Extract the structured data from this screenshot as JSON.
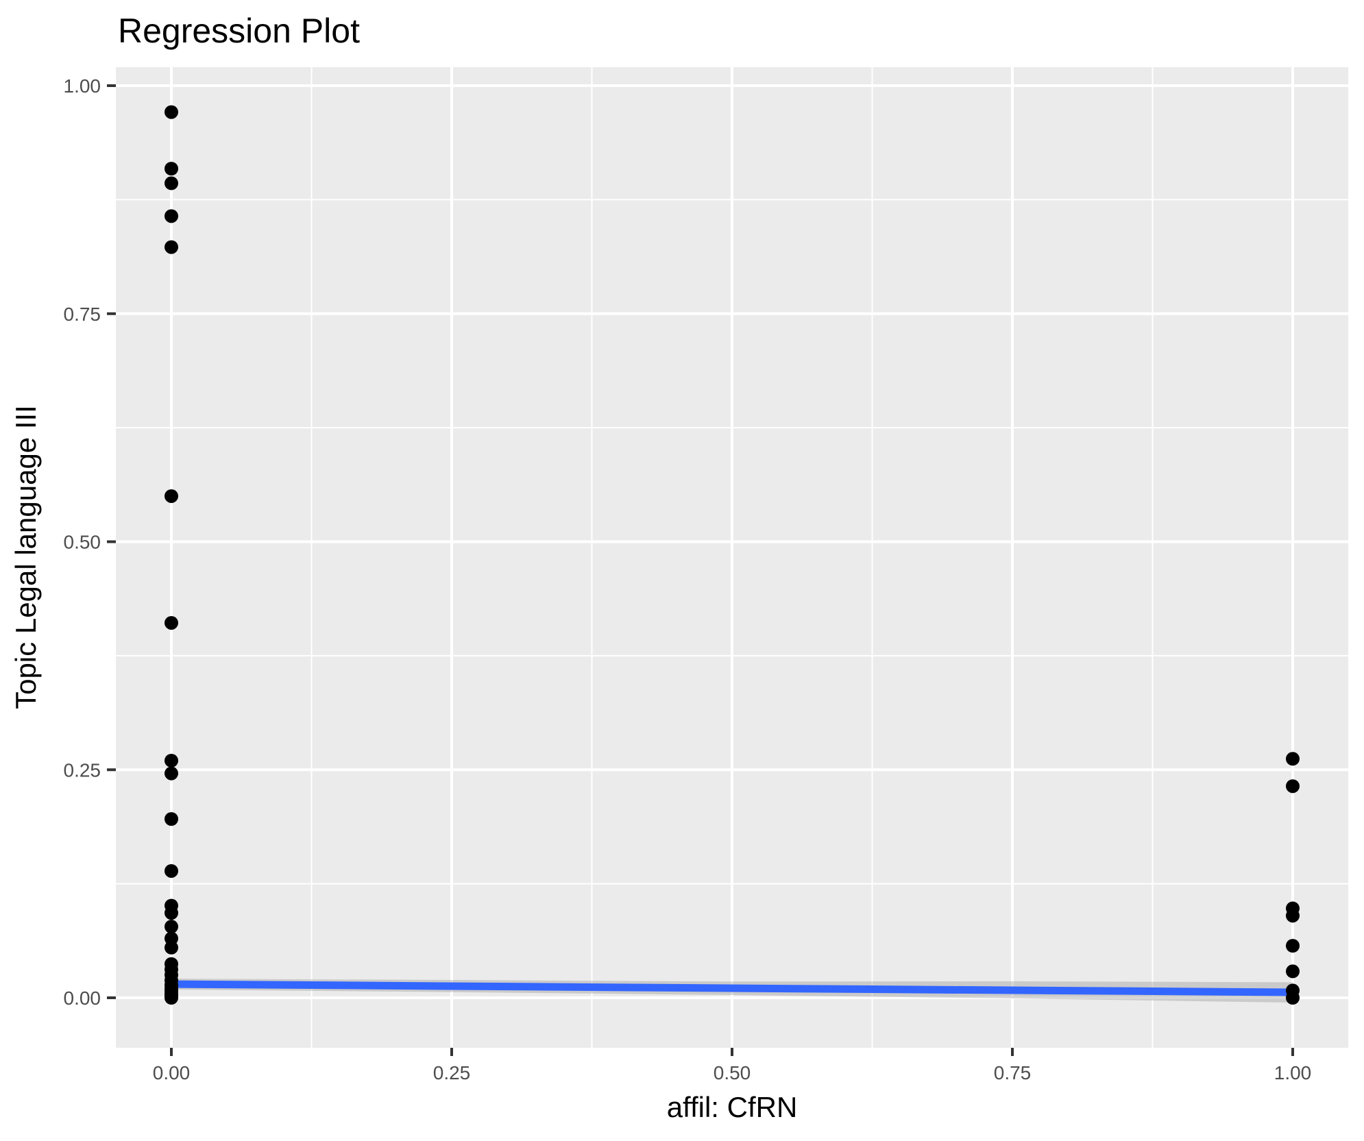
{
  "chart_data": {
    "type": "scatter",
    "title": "Regression Plot",
    "xlabel": "affil: CfRN",
    "ylabel": "Topic Legal language III",
    "xlim": [
      -0.05,
      1.05
    ],
    "ylim": [
      -0.055,
      1.02
    ],
    "x_tick_labels": [
      "0.00",
      "0.25",
      "0.50",
      "0.75",
      "1.00"
    ],
    "x_tick_values": [
      0,
      0.25,
      0.5,
      0.75,
      1.0
    ],
    "y_tick_labels": [
      "0.00",
      "0.25",
      "0.50",
      "0.75",
      "1.00"
    ],
    "y_tick_values": [
      0,
      0.25,
      0.5,
      0.75,
      1.0
    ],
    "minor_x": [
      0.125,
      0.375,
      0.625,
      0.875
    ],
    "minor_y": [
      0.125,
      0.375,
      0.625,
      0.875
    ],
    "grid": true,
    "legend": false,
    "points": [
      {
        "x": 0,
        "y": [
          0.971,
          0.909,
          0.893,
          0.857,
          0.823,
          0.55,
          0.411,
          0.26,
          0.246,
          0.196,
          0.139,
          0.101,
          0.093,
          0.078,
          0.065,
          0.055,
          0.037,
          0.031,
          0.025,
          0.019,
          0.014,
          0.01,
          0.007,
          0.004,
          0.002,
          0.001,
          0.0
        ]
      },
      {
        "x": 1,
        "y": [
          0.262,
          0.232,
          0.098,
          0.09,
          0.057,
          0.029,
          0.008,
          0.0
        ]
      }
    ],
    "regression_line": {
      "x": [
        0,
        1
      ],
      "y": [
        0.015,
        0.006
      ]
    },
    "confidence_band": {
      "x": [
        0,
        0.25,
        0.5,
        0.75,
        1.0
      ],
      "upper": [
        0.021,
        0.0195,
        0.0178,
        0.0181,
        0.017
      ],
      "lower": [
        0.009,
        0.0062,
        0.003,
        -0.0007,
        -0.0053
      ]
    },
    "colors": {
      "point": "#000000",
      "line": "#3366FF",
      "band": "#999999",
      "panel": "#EBEBEB",
      "grid": "#FFFFFF",
      "tick_label": "#4D4D4D",
      "tick_mark": "#333333",
      "title": "#000000"
    }
  }
}
